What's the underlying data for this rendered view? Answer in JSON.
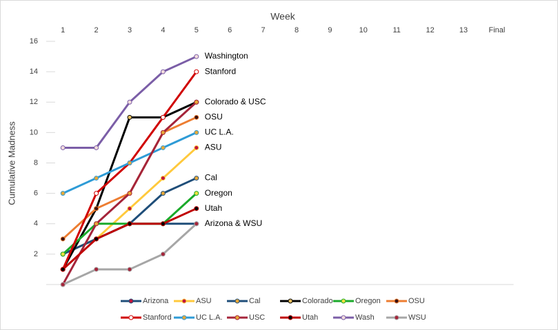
{
  "chart_data": {
    "type": "line",
    "title": "Week",
    "y_label": "Cumulative Madness",
    "categories": [
      "1",
      "2",
      "3",
      "4",
      "5",
      "6",
      "7",
      "8",
      "9",
      "10",
      "11",
      "12",
      "13",
      "Final"
    ],
    "ylim": [
      0,
      16
    ],
    "yticks": [
      2,
      4,
      6,
      8,
      10,
      12,
      14,
      16
    ],
    "grid": false,
    "legend": "bottom",
    "series": [
      {
        "name": "Arizona",
        "color": "#1f4e79",
        "marker": "#c0143c",
        "values": [
          2,
          3,
          4,
          4,
          4,
          null,
          null,
          null,
          null,
          null,
          null,
          null,
          null,
          null
        ]
      },
      {
        "name": "ASU",
        "color": "#ffc93c",
        "marker": "#c0143c",
        "values": [
          2,
          3,
          5,
          7,
          9,
          null,
          null,
          null,
          null,
          null,
          null,
          null,
          null,
          null
        ]
      },
      {
        "name": "Cal",
        "color": "#1f4e79",
        "marker": "#e8a838",
        "values": [
          2,
          3,
          4,
          6,
          7,
          null,
          null,
          null,
          null,
          null,
          null,
          null,
          null,
          null
        ]
      },
      {
        "name": "Colorado",
        "color": "#000000",
        "marker": "#e8c060",
        "values": [
          1,
          5,
          11,
          11,
          12,
          null,
          null,
          null,
          null,
          null,
          null,
          null,
          null,
          null
        ]
      },
      {
        "name": "Oregon",
        "color": "#1aaa2a",
        "marker": "#f2e040",
        "values": [
          2,
          4,
          4,
          4,
          6,
          null,
          null,
          null,
          null,
          null,
          null,
          null,
          null,
          null
        ]
      },
      {
        "name": "OSU",
        "color": "#ed7d31",
        "marker": "#3a1010",
        "values": [
          3,
          5,
          6,
          10,
          11,
          null,
          null,
          null,
          null,
          null,
          null,
          null,
          null,
          null
        ]
      },
      {
        "name": "Stanford",
        "color": "#d00000",
        "marker": "#ffffff",
        "values": [
          1,
          6,
          8,
          11,
          14,
          null,
          null,
          null,
          null,
          null,
          null,
          null,
          null,
          null
        ]
      },
      {
        "name": "UC L.A.",
        "color": "#2e9bd6",
        "marker": "#e8a838",
        "values": [
          6,
          7,
          8,
          9,
          10,
          null,
          null,
          null,
          null,
          null,
          null,
          null,
          null,
          null
        ]
      },
      {
        "name": "USC",
        "color": "#a5243a",
        "marker": "#e8a838",
        "values": [
          0,
          4,
          6,
          10,
          12,
          null,
          null,
          null,
          null,
          null,
          null,
          null,
          null,
          null
        ]
      },
      {
        "name": "Utah",
        "color": "#c00000",
        "marker": "#000000",
        "values": [
          1,
          3,
          4,
          4,
          5,
          null,
          null,
          null,
          null,
          null,
          null,
          null,
          null,
          null
        ]
      },
      {
        "name": "Wash",
        "color": "#7b5ea7",
        "marker": "#f2dcdc",
        "values": [
          9,
          9,
          12,
          14,
          15,
          null,
          null,
          null,
          null,
          null,
          null,
          null,
          null,
          null
        ]
      },
      {
        "name": "WSU",
        "color": "#a6a6a6",
        "marker": "#a5243a",
        "values": [
          0,
          1,
          1,
          2,
          4,
          null,
          null,
          null,
          null,
          null,
          null,
          null,
          null,
          null
        ]
      }
    ],
    "annotations": [
      {
        "text": "Washington",
        "value": 15
      },
      {
        "text": "Stanford",
        "value": 14
      },
      {
        "text": "Colorado & USC",
        "value": 12
      },
      {
        "text": "OSU",
        "value": 11
      },
      {
        "text": "UC L.A.",
        "value": 10
      },
      {
        "text": "ASU",
        "value": 9
      },
      {
        "text": "Cal",
        "value": 7
      },
      {
        "text": "Oregon",
        "value": 6
      },
      {
        "text": "Utah",
        "value": 5
      },
      {
        "text": "Arizona & WSU",
        "value": 4
      }
    ]
  }
}
